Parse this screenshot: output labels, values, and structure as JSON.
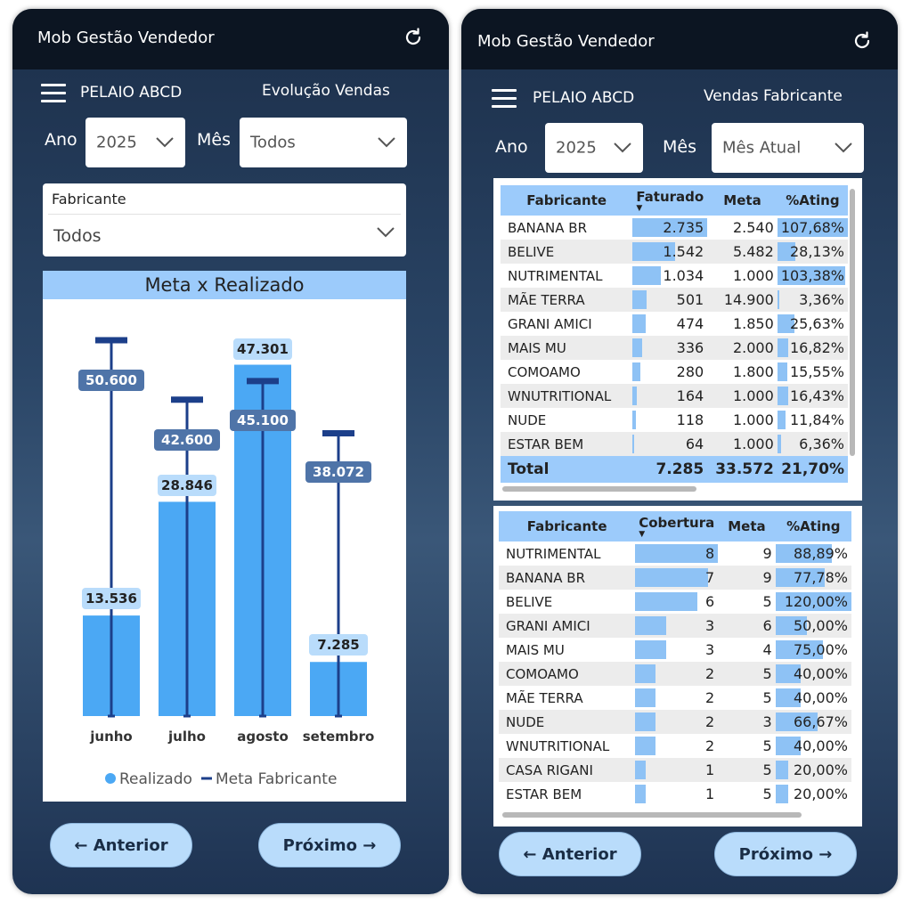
{
  "left": {
    "app_title": "Mob Gestão Vendedor",
    "store": "PELAIO ABCD",
    "page_title": "Evolução Vendas",
    "year_label": "Ano",
    "year_value": "2025",
    "month_label": "Mês",
    "month_value": "Todos",
    "manufacturer_label": "Fabricante",
    "manufacturer_value": "Todos",
    "prev_label": "← Anterior",
    "next_label": "Próximo →"
  },
  "chart_data": {
    "type": "bar",
    "title": "Meta x Realizado",
    "categories": [
      "junho",
      "julho",
      "agosto",
      "setembro"
    ],
    "series": [
      {
        "name": "Realizado",
        "kind": "bar",
        "values": [
          13536,
          28846,
          47301,
          7285
        ],
        "labels": [
          "13.536",
          "28.846",
          "47.301",
          "7.285"
        ],
        "color": "#4ba8f4"
      },
      {
        "name": "Meta Fabricante",
        "kind": "line-marker",
        "values": [
          50600,
          42600,
          45100,
          38072
        ],
        "labels": [
          "50.600",
          "42.600",
          "45.100",
          "38.072"
        ],
        "color": "#1c3f8a"
      }
    ],
    "ylim": [
      0,
      50600
    ],
    "legend_position": "bottom"
  },
  "right": {
    "app_title": "Mob Gestão Vendedor",
    "store": "PELAIO ABCD",
    "page_title": "Vendas Fabricante",
    "year_label": "Ano",
    "year_value": "2025",
    "month_label": "Mês",
    "month_value": "Mês Atual",
    "prev_label": "← Anterior",
    "next_label": "Próximo →",
    "table1": {
      "headers": [
        "Fabricante",
        "Faturado",
        "Meta",
        "%Ating"
      ],
      "rows": [
        {
          "name": "BANANA BR",
          "faturado": "2.735",
          "meta": "2.540",
          "ating": "107,68%",
          "fat_frac": 1.0,
          "ating_frac": 1.0
        },
        {
          "name": "BELIVE",
          "faturado": "1.542",
          "meta": "5.482",
          "ating": "28,13%",
          "fat_frac": 0.564,
          "ating_frac": 0.261
        },
        {
          "name": "NUTRIMENTAL",
          "faturado": "1.034",
          "meta": "1.000",
          "ating": "103,38%",
          "fat_frac": 0.378,
          "ating_frac": 0.96
        },
        {
          "name": "MÃE TERRA",
          "faturado": "501",
          "meta": "14.900",
          "ating": "3,36%",
          "fat_frac": 0.183,
          "ating_frac": 0.031
        },
        {
          "name": "GRANI AMICI",
          "faturado": "474",
          "meta": "1.850",
          "ating": "25,63%",
          "fat_frac": 0.173,
          "ating_frac": 0.238
        },
        {
          "name": "MAIS MU",
          "faturado": "336",
          "meta": "2.000",
          "ating": "16,82%",
          "fat_frac": 0.123,
          "ating_frac": 0.156
        },
        {
          "name": "COMOAMO",
          "faturado": "280",
          "meta": "1.800",
          "ating": "15,55%",
          "fat_frac": 0.102,
          "ating_frac": 0.144
        },
        {
          "name": "WNUTRITIONAL",
          "faturado": "164",
          "meta": "1.000",
          "ating": "16,43%",
          "fat_frac": 0.06,
          "ating_frac": 0.153
        },
        {
          "name": "NUDE",
          "faturado": "118",
          "meta": "1.000",
          "ating": "11,84%",
          "fat_frac": 0.043,
          "ating_frac": 0.11
        },
        {
          "name": "ESTAR BEM",
          "faturado": "64",
          "meta": "1.000",
          "ating": "6,36%",
          "fat_frac": 0.023,
          "ating_frac": 0.059
        }
      ],
      "total": {
        "name": "Total",
        "faturado": "7.285",
        "meta": "33.572",
        "ating": "21,70%"
      }
    },
    "table2": {
      "headers": [
        "Fabricante",
        "Cobertura",
        "Meta",
        "%Ating"
      ],
      "rows": [
        {
          "name": "NUTRIMENTAL",
          "cobertura": "8",
          "meta": "9",
          "ating": "88,89%",
          "cob_frac": 1.0,
          "ating_frac": 0.741
        },
        {
          "name": "BANANA BR",
          "cobertura": "7",
          "meta": "9",
          "ating": "77,78%",
          "cob_frac": 0.875,
          "ating_frac": 0.648
        },
        {
          "name": "BELIVE",
          "cobertura": "6",
          "meta": "5",
          "ating": "120,00%",
          "cob_frac": 0.75,
          "ating_frac": 1.0
        },
        {
          "name": "GRANI AMICI",
          "cobertura": "3",
          "meta": "6",
          "ating": "50,00%",
          "cob_frac": 0.375,
          "ating_frac": 0.417
        },
        {
          "name": "MAIS MU",
          "cobertura": "3",
          "meta": "4",
          "ating": "75,00%",
          "cob_frac": 0.375,
          "ating_frac": 0.625
        },
        {
          "name": "COMOAMO",
          "cobertura": "2",
          "meta": "5",
          "ating": "40,00%",
          "cob_frac": 0.25,
          "ating_frac": 0.333
        },
        {
          "name": "MÃE TERRA",
          "cobertura": "2",
          "meta": "5",
          "ating": "40,00%",
          "cob_frac": 0.25,
          "ating_frac": 0.333
        },
        {
          "name": "NUDE",
          "cobertura": "2",
          "meta": "3",
          "ating": "66,67%",
          "cob_frac": 0.25,
          "ating_frac": 0.556
        },
        {
          "name": "WNUTRITIONAL",
          "cobertura": "2",
          "meta": "5",
          "ating": "40,00%",
          "cob_frac": 0.25,
          "ating_frac": 0.333
        },
        {
          "name": "CASA RIGANI",
          "cobertura": "1",
          "meta": "5",
          "ating": "20,00%",
          "cob_frac": 0.125,
          "ating_frac": 0.167
        },
        {
          "name": "ESTAR BEM",
          "cobertura": "1",
          "meta": "5",
          "ating": "20,00%",
          "cob_frac": 0.125,
          "ating_frac": 0.167
        }
      ]
    }
  }
}
